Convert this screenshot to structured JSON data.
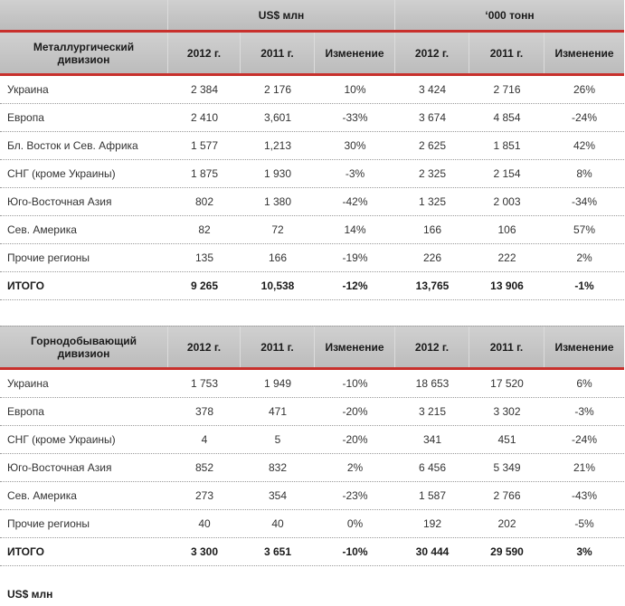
{
  "units": {
    "usd": "US$ млн",
    "tons": "‘000 тонн"
  },
  "columns": [
    "2012 г.",
    "2011 г.",
    "Изменение",
    "2012 г.",
    "2011 г.",
    "Изменение"
  ],
  "metallurgical": {
    "title_line1": "Металлургический",
    "title_line2": "дивизион",
    "rows": [
      {
        "region": "Украина",
        "v": [
          "2 384",
          "2 176",
          "10%",
          "3 424",
          "2 716",
          "26%"
        ]
      },
      {
        "region": "Европа",
        "v": [
          "2 410",
          "3,601",
          "-33%",
          "3 674",
          "4 854",
          "-24%"
        ]
      },
      {
        "region": "Бл. Восток и  Сев. Африка",
        "v": [
          "1 577",
          "1,213",
          "30%",
          "2 625",
          "1 851",
          "42%"
        ]
      },
      {
        "region": "СНГ (кроме Украины)",
        "v": [
          "1 875",
          "1 930",
          "-3%",
          "2 325",
          "2 154",
          "8%"
        ]
      },
      {
        "region": "Юго-Восточная Азия",
        "v": [
          "802",
          "1 380",
          "-42%",
          "1 325",
          "2 003",
          "-34%"
        ]
      },
      {
        "region": "Сев. Америка",
        "v": [
          "82",
          "72",
          "14%",
          "166",
          "106",
          "57%"
        ]
      },
      {
        "region": "Прочие регионы",
        "v": [
          "135",
          "166",
          "-19%",
          "226",
          "222",
          "2%"
        ]
      },
      {
        "region": "ИТОГО",
        "v": [
          "9 265",
          "10,538",
          "-12%",
          "13,765",
          "13 906",
          "-1%"
        ]
      }
    ]
  },
  "mining": {
    "title_line1": "Горнодобывающий",
    "title_line2": "дивизион",
    "rows": [
      {
        "region": "Украина",
        "v": [
          "1 753",
          "1 949",
          "-10%",
          "18 653",
          "17 520",
          "6%"
        ]
      },
      {
        "region": "Европа",
        "v": [
          "378",
          "471",
          "-20%",
          "3 215",
          "3 302",
          "-3%"
        ]
      },
      {
        "region": "СНГ (кроме Украины)",
        "v": [
          "4",
          "5",
          "-20%",
          "341",
          "451",
          "-24%"
        ]
      },
      {
        "region": "Юго-Восточная Азия",
        "v": [
          "852",
          "832",
          "2%",
          "6 456",
          "5 349",
          "21%"
        ]
      },
      {
        "region": "Сев. Америка",
        "v": [
          "273",
          "354",
          "-23%",
          "1 587",
          "2 766",
          "-43%"
        ]
      },
      {
        "region": "Прочие регионы",
        "v": [
          "40",
          "40",
          "0%",
          "192",
          "202",
          "-5%"
        ]
      },
      {
        "region": "ИТОГО",
        "v": [
          "3 300",
          "3 651",
          "-10%",
          "30 444",
          "29 590",
          "3%"
        ]
      }
    ]
  },
  "footer": "US$ млн",
  "colors": {
    "accent_red": "#c8302c",
    "header_gray": "#c4c4c4"
  }
}
